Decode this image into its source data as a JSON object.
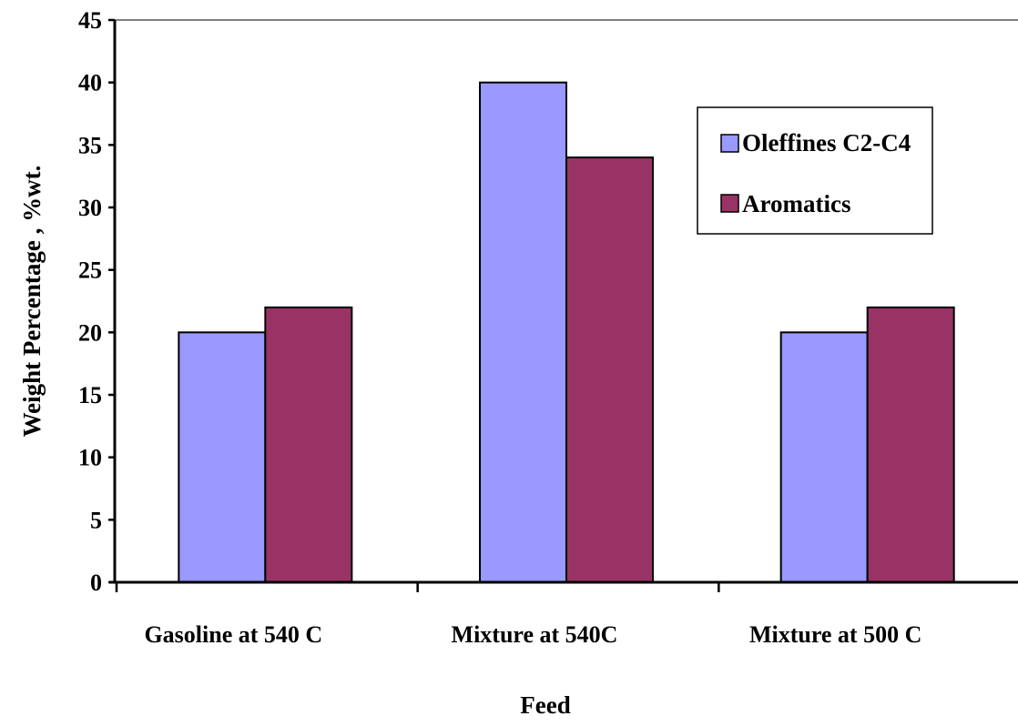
{
  "chart_data": {
    "type": "bar",
    "title": "",
    "xlabel": "Feed",
    "ylabel": "Weight Percentage , %wt.",
    "categories": [
      "Gasoline at 540 C",
      "Mixture at 540C",
      "Mixture at 500 C"
    ],
    "series": [
      {
        "name": "Oleffines C2-C4",
        "values": [
          20,
          40,
          20
        ],
        "color": "#9999ff"
      },
      {
        "name": "Aromatics",
        "values": [
          22,
          34,
          22
        ],
        "color": "#993366"
      }
    ],
    "ylim": [
      0,
      45
    ],
    "yticks": [
      0,
      5,
      10,
      15,
      20,
      25,
      30,
      35,
      40,
      45
    ],
    "grid": false,
    "legend_position": "top-right"
  }
}
